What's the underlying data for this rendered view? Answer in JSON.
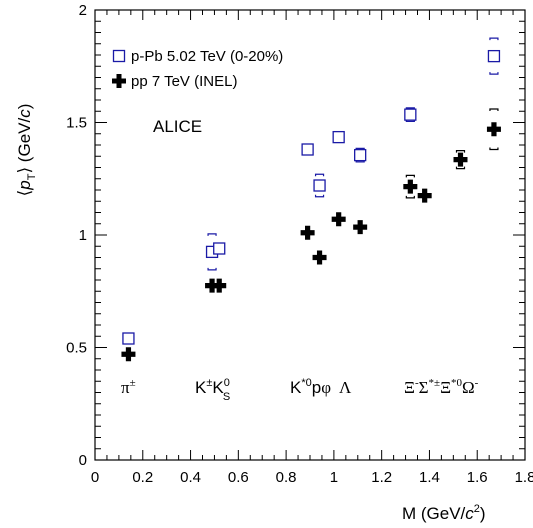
{
  "chart_data": {
    "type": "scatter",
    "title": "",
    "xlabel": "M (GeV/c²)",
    "ylabel": "⟨pT⟩ (GeV/c)",
    "xlim": [
      0,
      1.8
    ],
    "ylim": [
      0,
      2.0
    ],
    "x_ticks": [
      0,
      0.2,
      0.4,
      0.6,
      0.8,
      1.0,
      1.2,
      1.4,
      1.6,
      1.8
    ],
    "x_tick_labels": [
      "0",
      "0.2",
      "0.4",
      "0.6",
      "0.8",
      "1",
      "1.2",
      "1.4",
      "1.6",
      "1.8"
    ],
    "y_ticks": [
      0,
      0.5,
      1.0,
      1.5,
      2.0
    ],
    "y_tick_labels": [
      "0",
      "0.5",
      "1",
      "1.5",
      "2"
    ],
    "grid": false,
    "legend_position": "top-left",
    "annotation": "ALICE",
    "particle_labels": [
      "π±",
      "K±K0S",
      "K*0pφ Λ",
      "Ξ-Σ*±Ξ*0Ω-"
    ],
    "series": [
      {
        "name": "p-Pb 5.02 TeV (0-20%)",
        "marker": "open-square",
        "color": "#1a1aa6",
        "points": [
          {
            "x": 0.14,
            "y": 0.54,
            "syst": 0.0
          },
          {
            "x": 0.49,
            "y": 0.925,
            "syst": 0.08
          },
          {
            "x": 0.52,
            "y": 0.94,
            "syst": 0.0
          },
          {
            "x": 0.89,
            "y": 1.38,
            "syst": 0.0
          },
          {
            "x": 0.94,
            "y": 1.22,
            "syst": 0.05
          },
          {
            "x": 1.02,
            "y": 1.435,
            "syst": 0.0
          },
          {
            "x": 1.11,
            "y": 1.355,
            "syst": 0.03
          },
          {
            "x": 1.32,
            "y": 1.535,
            "syst": 0.03
          },
          {
            "x": 1.67,
            "y": 1.795,
            "syst": 0.08
          }
        ]
      },
      {
        "name": "pp 7 TeV (INEL)",
        "marker": "filled-cross",
        "color": "#000000",
        "points": [
          {
            "x": 0.14,
            "y": 0.47,
            "syst": 0.0
          },
          {
            "x": 0.49,
            "y": 0.775,
            "syst": 0.0
          },
          {
            "x": 0.52,
            "y": 0.775,
            "syst": 0.0
          },
          {
            "x": 0.89,
            "y": 1.01,
            "syst": 0.0
          },
          {
            "x": 0.94,
            "y": 0.9,
            "syst": 0.0
          },
          {
            "x": 1.02,
            "y": 1.07,
            "syst": 0.0
          },
          {
            "x": 1.11,
            "y": 1.035,
            "syst": 0.0
          },
          {
            "x": 1.32,
            "y": 1.215,
            "syst": 0.05
          },
          {
            "x": 1.38,
            "y": 1.175,
            "syst": 0.0
          },
          {
            "x": 1.53,
            "y": 1.335,
            "syst": 0.04
          },
          {
            "x": 1.67,
            "y": 1.47,
            "syst": 0.09
          }
        ]
      }
    ]
  }
}
